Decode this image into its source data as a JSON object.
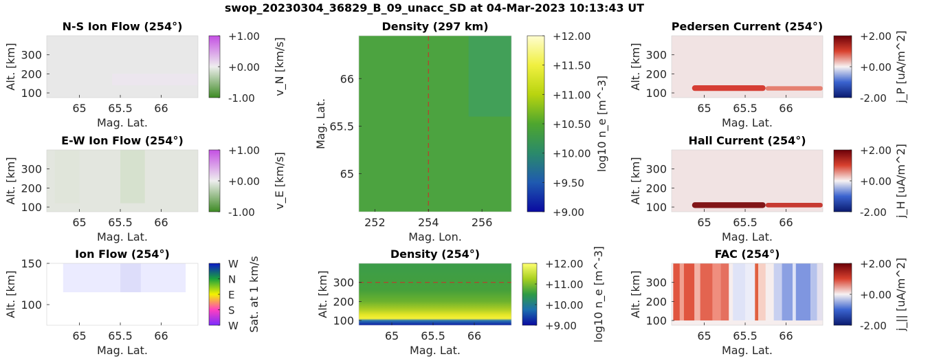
{
  "suptitle": "swop_20230304_36829_B_09_unacc_SD at 04-Mar-2023 10:13:43 UT",
  "chart_data": [
    {
      "id": "ns",
      "type": "heatmap",
      "title": "N-S Ion Flow (254°)",
      "xlabel": "Mag. Lat.",
      "ylabel": "Alt. [km]",
      "xlim": [
        64.6,
        66.45
      ],
      "ylim": [
        75,
        400
      ],
      "xticks": [
        {
          "v": 65,
          "t": "65"
        },
        {
          "v": 65.5,
          "t": "65.5"
        },
        {
          "v": 66,
          "t": "66"
        }
      ],
      "yticks": [
        {
          "v": 100,
          "t": "100"
        },
        {
          "v": 200,
          "t": "200"
        },
        {
          "v": 300,
          "t": "300"
        }
      ],
      "colorbar": {
        "label": "v_N [km/s]",
        "range": [
          -1,
          1
        ],
        "ticks": [
          "+1.00",
          "+0.00",
          "-1.00"
        ],
        "colors": [
          "#c44fe3",
          "#eeeeee",
          "#3d8a23"
        ]
      },
      "field": {
        "base": "#e8e8e8",
        "features": [
          {
            "lat": [
              65.4,
              66.45
            ],
            "alt": [
              140,
              200
            ],
            "color": "#ece6ee"
          }
        ]
      }
    },
    {
      "id": "ew",
      "type": "heatmap",
      "title": "E-W Ion Flow (254°)",
      "xlabel": "Mag. Lat.",
      "ylabel": "Alt. [km]",
      "xlim": [
        64.6,
        66.45
      ],
      "ylim": [
        75,
        400
      ],
      "xticks": [
        {
          "v": 65,
          "t": "65"
        },
        {
          "v": 65.5,
          "t": "65.5"
        },
        {
          "v": 66,
          "t": "66"
        }
      ],
      "yticks": [
        {
          "v": 100,
          "t": "100"
        },
        {
          "v": 200,
          "t": "200"
        },
        {
          "v": 300,
          "t": "300"
        }
      ],
      "colorbar": {
        "label": "v_E [km/s]",
        "range": [
          -1,
          1
        ],
        "ticks": [
          "+1.00",
          "+0.00",
          "-1.00"
        ],
        "colors": [
          "#c44fe3",
          "#eeeeee",
          "#3d8a23"
        ]
      },
      "field": {
        "base": "#e3e6df",
        "features": [
          {
            "lat": [
              65.5,
              65.8
            ],
            "alt": [
              120,
              400
            ],
            "color": "#d5e0cc"
          },
          {
            "lat": [
              64.7,
              65.0
            ],
            "alt": [
              120,
              400
            ],
            "color": "#dfe5d9"
          }
        ]
      }
    },
    {
      "id": "ion",
      "type": "heatmap",
      "title": "Ion Flow (254°)",
      "xlabel": "Mag. Lat.",
      "ylabel": "Alt. [km]",
      "xlim": [
        64.6,
        66.45
      ],
      "ylim": [
        75,
        150
      ],
      "xticks": [
        {
          "v": 65,
          "t": "65"
        },
        {
          "v": 65.5,
          "t": "65.5"
        },
        {
          "v": 66,
          "t": "66"
        }
      ],
      "yticks": [
        {
          "v": 100,
          "t": "100"
        },
        {
          "v": 150,
          "t": "150"
        }
      ],
      "colorbar": {
        "label": "Sat. at 1 km/s",
        "range": [
          0,
          1
        ],
        "ticks": [
          "W",
          "N",
          "E",
          "S",
          "W"
        ],
        "colors": [
          "#0a18c8",
          "#1aa23c",
          "#f4f200",
          "#ff3fc0",
          "#7a2cff"
        ]
      },
      "field": {
        "base": "#ffffff",
        "features": [
          {
            "lat": [
              64.8,
              66.3
            ],
            "alt": [
              115,
              150
            ],
            "color": "#eaeaff"
          },
          {
            "lat": [
              65.5,
              65.75
            ],
            "alt": [
              115,
              150
            ],
            "color": "#dcdcfa"
          }
        ]
      }
    },
    {
      "id": "dens_top",
      "type": "heatmap",
      "title": "Density (297 km)",
      "xlabel": "Mag. Lon.",
      "ylabel": "Mag. Lat.",
      "xlim": [
        251.4,
        257.1
      ],
      "ylim": [
        64.6,
        66.45
      ],
      "xticks": [
        {
          "v": 252,
          "t": "252"
        },
        {
          "v": 254,
          "t": "254"
        },
        {
          "v": 256,
          "t": "256"
        }
      ],
      "yticks": [
        {
          "v": 65,
          "t": "65"
        },
        {
          "v": 65.5,
          "t": "65.5"
        },
        {
          "v": 66,
          "t": "66"
        }
      ],
      "marker_line": {
        "orientation": "vertical",
        "value": 254,
        "color": "#c0392b"
      },
      "colorbar": {
        "label": "log10 n_e [m^-3]",
        "range": [
          9,
          12
        ],
        "ticks": [
          "+12.00",
          "+11.50",
          "+11.00",
          "+10.50",
          "+10.00",
          "+9.50",
          "+9.00"
        ],
        "colors": [
          "#fffdd0",
          "#f0f040",
          "#b8d40f",
          "#4ea62e",
          "#2a8a6a",
          "#1f5ab0",
          "#0a0aa0"
        ]
      },
      "field": {
        "base": "#4ca340",
        "features": [
          {
            "lat": [
              65.6,
              66.45
            ],
            "lon": [
              255.5,
              257.1
            ],
            "color": "#41a05a"
          }
        ]
      }
    },
    {
      "id": "dens_bot",
      "type": "heatmap",
      "title": "Density (254°)",
      "xlabel": "Mag. Lat.",
      "ylabel": "Alt. [km]",
      "xlim": [
        64.6,
        66.45
      ],
      "ylim": [
        75,
        400
      ],
      "xticks": [
        {
          "v": 65,
          "t": "65"
        },
        {
          "v": 65.5,
          "t": "65.5"
        },
        {
          "v": 66,
          "t": "66"
        }
      ],
      "yticks": [
        {
          "v": 100,
          "t": "100"
        },
        {
          "v": 200,
          "t": "200"
        },
        {
          "v": 300,
          "t": "300"
        }
      ],
      "marker_line": {
        "orientation": "horizontal",
        "value": 300,
        "color": "#c0392b"
      },
      "colorbar": {
        "label": "log10 n_e [m^-3]",
        "range": [
          9,
          12
        ],
        "ticks": [
          "+12.00",
          "+11.00",
          "+10.00",
          "+9.00"
        ],
        "colors": [
          "#ffff70",
          "#a8d020",
          "#2e9a45",
          "#1c6fae",
          "#0a0aa0"
        ]
      },
      "field": {
        "profile": [
          {
            "alt": 400,
            "color": "#3b9c4a"
          },
          {
            "alt": 260,
            "color": "#45a03b"
          },
          {
            "alt": 200,
            "color": "#6cb22e"
          },
          {
            "alt": 160,
            "color": "#a9cc25"
          },
          {
            "alt": 130,
            "color": "#e4e627"
          },
          {
            "alt": 110,
            "color": "#f4f03a"
          },
          {
            "alt": 100,
            "color": "#2c7ab0"
          },
          {
            "alt": 75,
            "color": "#0b1aa6"
          }
        ]
      }
    },
    {
      "id": "ped",
      "type": "heatmap",
      "title": "Pedersen Current (254°)",
      "xlabel": "Mag. Lat.",
      "ylabel": "Alt. [km]",
      "xlim": [
        64.6,
        66.45
      ],
      "ylim": [
        75,
        400
      ],
      "xticks": [
        {
          "v": 65,
          "t": "65"
        },
        {
          "v": 65.5,
          "t": "65.5"
        },
        {
          "v": 66,
          "t": "66"
        }
      ],
      "yticks": [
        {
          "v": 100,
          "t": "100"
        },
        {
          "v": 200,
          "t": "200"
        },
        {
          "v": 300,
          "t": "300"
        }
      ],
      "colorbar": {
        "label": "j_P [uA/m^2]",
        "range": [
          -2,
          2
        ],
        "ticks": [
          "+2.00",
          "+0.00",
          "-2.00"
        ],
        "colors": [
          "#6b0008",
          "#d8412e",
          "#f7f2f2",
          "#3a63cf",
          "#0a1a6e"
        ]
      },
      "field": {
        "base": "#f1e3e3",
        "features": [
          {
            "lat": [
              64.85,
              65.75
            ],
            "alt": [
              110,
              140
            ],
            "color": "#d4352a"
          },
          {
            "lat": [
              65.75,
              66.45
            ],
            "alt": [
              112,
              135
            ],
            "color": "#e47a6a"
          }
        ]
      }
    },
    {
      "id": "hall",
      "type": "heatmap",
      "title": "Hall Current (254°)",
      "xlabel": "Mag. Lat.",
      "ylabel": "Alt. [km]",
      "xlim": [
        64.6,
        66.45
      ],
      "ylim": [
        75,
        400
      ],
      "xticks": [
        {
          "v": 65,
          "t": "65"
        },
        {
          "v": 65.5,
          "t": "65.5"
        },
        {
          "v": 66,
          "t": "66"
        }
      ],
      "yticks": [
        {
          "v": 100,
          "t": "100"
        },
        {
          "v": 200,
          "t": "200"
        },
        {
          "v": 300,
          "t": "300"
        }
      ],
      "colorbar": {
        "label": "j_H [uA/m^2]",
        "range": [
          -2,
          2
        ],
        "ticks": [
          "+2.00",
          "+0.00",
          "-2.00"
        ],
        "colors": [
          "#6b0008",
          "#d8412e",
          "#f7f2f2",
          "#3a63cf",
          "#0a1a6e"
        ]
      },
      "field": {
        "base": "#f1e3e3",
        "features": [
          {
            "lat": [
              64.85,
              65.75
            ],
            "alt": [
              95,
              125
            ],
            "color": "#7a0a0c"
          },
          {
            "lat": [
              65.75,
              66.45
            ],
            "alt": [
              98,
              122
            ],
            "color": "#c43028"
          }
        ]
      }
    },
    {
      "id": "fac",
      "type": "heatmap",
      "title": "FAC (254°)",
      "xlabel": "Mag. Lat.",
      "ylabel": "Alt. [km]",
      "xlim": [
        64.6,
        66.45
      ],
      "ylim": [
        75,
        400
      ],
      "xticks": [
        {
          "v": 65,
          "t": "65"
        },
        {
          "v": 65.5,
          "t": "65.5"
        },
        {
          "v": 66,
          "t": "66"
        }
      ],
      "yticks": [
        {
          "v": 100,
          "t": "100"
        },
        {
          "v": 200,
          "t": "200"
        },
        {
          "v": 300,
          "t": "300"
        }
      ],
      "colorbar": {
        "label": "j_|| [uA/m^2]",
        "range": [
          -2,
          2
        ],
        "ticks": [
          "+2.00",
          "+0.00",
          "-2.00"
        ],
        "colors": [
          "#6b0008",
          "#d8412e",
          "#f7f2f2",
          "#3a63cf",
          "#0a1a6e"
        ]
      },
      "field": {
        "base": "#f6eeee",
        "stripes": [
          {
            "lat": [
              64.62,
              64.7
            ],
            "color": "#e0553f"
          },
          {
            "lat": [
              64.7,
              64.75
            ],
            "color": "#f1a090"
          },
          {
            "lat": [
              64.75,
              64.88
            ],
            "color": "#e0553f"
          },
          {
            "lat": [
              64.88,
              64.95
            ],
            "color": "#f3b3a6"
          },
          {
            "lat": [
              64.95,
              65.1
            ],
            "color": "#e36450"
          },
          {
            "lat": [
              65.1,
              65.2
            ],
            "color": "#f08e7e"
          },
          {
            "lat": [
              65.2,
              65.3
            ],
            "color": "#e5705f"
          },
          {
            "lat": [
              65.35,
              65.5
            ],
            "color": "#dfe3f7"
          },
          {
            "lat": [
              65.5,
              65.62
            ],
            "color": "#ecedf8"
          },
          {
            "lat": [
              65.62,
              65.66
            ],
            "color": "#e06040"
          },
          {
            "lat": [
              65.66,
              65.75
            ],
            "color": "#f7d0c5"
          },
          {
            "lat": [
              65.85,
              65.95
            ],
            "color": "#c8d0f0"
          },
          {
            "lat": [
              65.95,
              66.08
            ],
            "color": "#8ba0e2"
          },
          {
            "lat": [
              66.08,
              66.12
            ],
            "color": "#dfe3f7"
          },
          {
            "lat": [
              66.12,
              66.3
            ],
            "color": "#7f96e0"
          },
          {
            "lat": [
              66.3,
              66.38
            ],
            "color": "#b7c3ec"
          },
          {
            "lat": [
              66.38,
              66.45
            ],
            "color": "#e4e0ee"
          }
        ],
        "stripe_alt_min": 100
      }
    }
  ]
}
